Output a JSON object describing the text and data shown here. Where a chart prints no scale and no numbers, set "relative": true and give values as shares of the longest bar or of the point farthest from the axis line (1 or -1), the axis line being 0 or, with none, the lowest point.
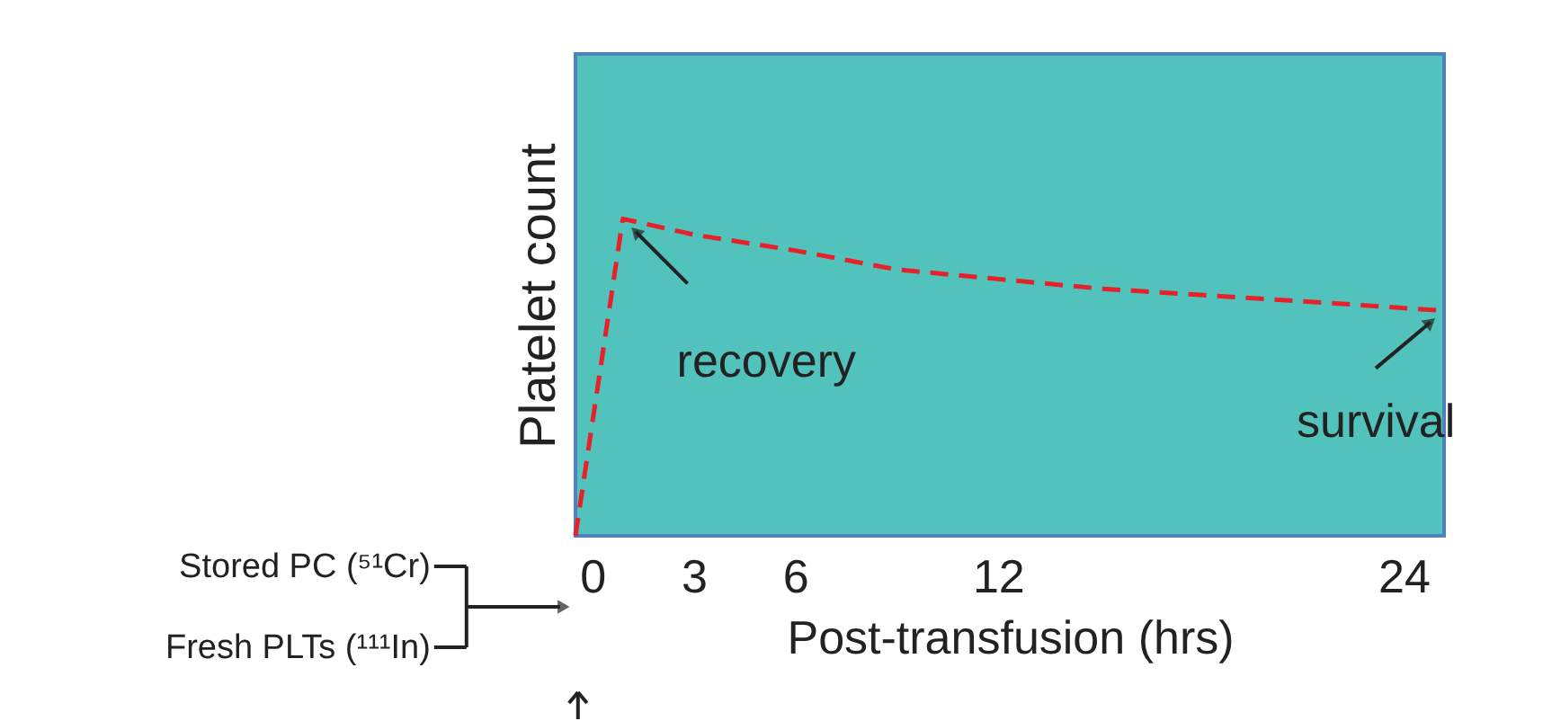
{
  "chart_data": {
    "type": "line",
    "relative": true,
    "xlabel": "Post-transfusion (hrs)",
    "ylabel": "Platelet count",
    "xlim": [
      -0.5,
      25.2
    ],
    "xticks": [
      0,
      3,
      6,
      12,
      24
    ],
    "x": [
      -0.5,
      0.9,
      3,
      6,
      9,
      12,
      15,
      18,
      21,
      25.2
    ],
    "series": [
      {
        "color": "#e8202a",
        "values": [
          0,
          1,
          0.95,
          0.9,
          0.84,
          0.81,
          0.78,
          0.76,
          0.74,
          0.71
        ]
      }
    ],
    "line_style": "dashed",
    "marker": "none",
    "grid": false,
    "annotations": [
      {
        "text": "recovery",
        "x": 0.9,
        "y": 1
      },
      {
        "text": "survival",
        "x": 25.2,
        "y": 0.71
      },
      "Stored PC (⁵¹Cr)",
      "Fresh PLTs (¹¹¹In)"
    ]
  }
}
